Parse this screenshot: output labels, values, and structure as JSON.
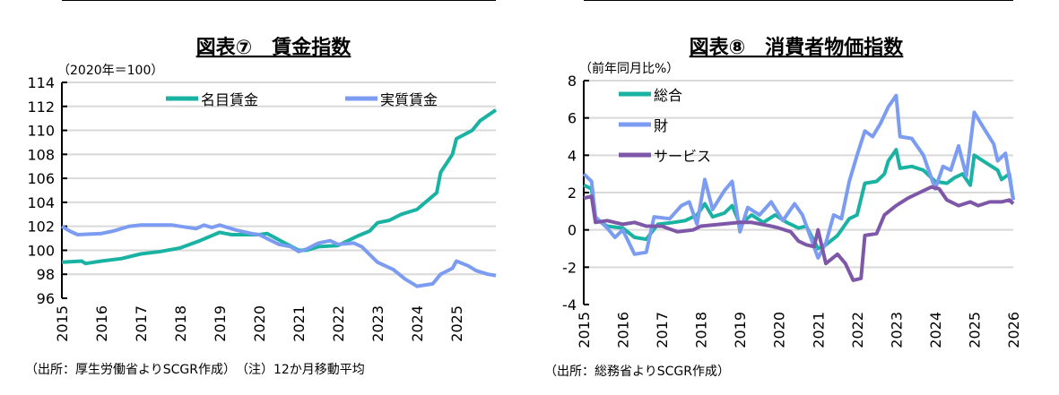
{
  "chart_data": [
    {
      "type": "line",
      "title": "図表⑦　賃金指数",
      "unit_label": "（2020年＝100）",
      "ylim": [
        96,
        114
      ],
      "yticks": [
        96,
        98,
        100,
        102,
        104,
        106,
        108,
        110,
        112,
        114
      ],
      "xticks": [
        "2015",
        "2016",
        "2017",
        "2018",
        "2019",
        "2020",
        "2021",
        "2022",
        "2023",
        "2024",
        "2025"
      ],
      "xlim": [
        2015,
        2026
      ],
      "grid": true,
      "legend": "top",
      "source": "（出所：厚生労働省よりSCGR作成）　（注）12か月移動平均",
      "series": [
        {
          "name": "名目賃金",
          "color": "#1ab3a3",
          "points": [
            [
              2015.0,
              99.0
            ],
            [
              2015.5,
              99.1
            ],
            [
              2015.6,
              98.9
            ],
            [
              2016.0,
              99.1
            ],
            [
              2016.5,
              99.3
            ],
            [
              2017.0,
              99.7
            ],
            [
              2017.5,
              99.9
            ],
            [
              2018.0,
              100.2
            ],
            [
              2018.5,
              100.8
            ],
            [
              2019.0,
              101.5
            ],
            [
              2019.3,
              101.3
            ],
            [
              2020.0,
              101.3
            ],
            [
              2020.2,
              101.4
            ],
            [
              2020.6,
              100.7
            ],
            [
              2021.0,
              100.0
            ],
            [
              2021.2,
              100.0
            ],
            [
              2021.5,
              100.3
            ],
            [
              2022.0,
              100.4
            ],
            [
              2022.5,
              101.2
            ],
            [
              2022.8,
              101.6
            ],
            [
              2023.0,
              102.3
            ],
            [
              2023.3,
              102.5
            ],
            [
              2023.6,
              103.0
            ],
            [
              2024.0,
              103.4
            ],
            [
              2024.5,
              104.8
            ],
            [
              2024.6,
              106.5
            ],
            [
              2024.9,
              108.0
            ],
            [
              2025.0,
              109.3
            ],
            [
              2025.4,
              110.0
            ],
            [
              2025.6,
              110.8
            ],
            [
              2026.0,
              111.7
            ]
          ]
        },
        {
          "name": "実質賃金",
          "color": "#7b9cf0",
          "points": [
            [
              2015.0,
              102.0
            ],
            [
              2015.2,
              101.6
            ],
            [
              2015.4,
              101.3
            ],
            [
              2016.0,
              101.4
            ],
            [
              2016.3,
              101.6
            ],
            [
              2016.7,
              102.0
            ],
            [
              2017.0,
              102.1
            ],
            [
              2017.8,
              102.1
            ],
            [
              2018.0,
              102.0
            ],
            [
              2018.4,
              101.8
            ],
            [
              2018.6,
              102.1
            ],
            [
              2018.8,
              101.9
            ],
            [
              2019.0,
              102.1
            ],
            [
              2019.4,
              101.7
            ],
            [
              2019.8,
              101.4
            ],
            [
              2020.0,
              101.3
            ],
            [
              2020.5,
              100.5
            ],
            [
              2020.8,
              100.3
            ],
            [
              2021.0,
              99.9
            ],
            [
              2021.2,
              100.1
            ],
            [
              2021.5,
              100.6
            ],
            [
              2021.8,
              100.8
            ],
            [
              2022.0,
              100.5
            ],
            [
              2022.4,
              100.6
            ],
            [
              2022.6,
              100.3
            ],
            [
              2023.0,
              99.0
            ],
            [
              2023.4,
              98.4
            ],
            [
              2023.7,
              97.6
            ],
            [
              2024.0,
              97.0
            ],
            [
              2024.4,
              97.2
            ],
            [
              2024.6,
              98.0
            ],
            [
              2024.9,
              98.5
            ],
            [
              2025.0,
              99.1
            ],
            [
              2025.3,
              98.7
            ],
            [
              2025.5,
              98.3
            ],
            [
              2025.8,
              98.0
            ],
            [
              2026.0,
              97.9
            ]
          ]
        }
      ]
    },
    {
      "type": "line",
      "title": "図表⑧　消費者物価指数",
      "unit_label": "（前年同月比%）",
      "ylim": [
        -4,
        8
      ],
      "yticks": [
        -4,
        -2,
        0,
        2,
        4,
        6,
        8
      ],
      "xticks": [
        "2015",
        "2016",
        "2017",
        "2018",
        "2019",
        "2020",
        "2021",
        "2022",
        "2023",
        "2024",
        "2025",
        "2026"
      ],
      "xlim": [
        2015,
        2026
      ],
      "grid": true,
      "legend": "top-left",
      "source": "（出所：総務省よりSCGR作成）",
      "series": [
        {
          "name": "総合",
          "color": "#1ab3a3",
          "points": [
            [
              2015.0,
              2.4
            ],
            [
              2015.2,
              2.2
            ],
            [
              2015.3,
              0.6
            ],
            [
              2015.6,
              0.2
            ],
            [
              2016.0,
              0.1
            ],
            [
              2016.3,
              -0.4
            ],
            [
              2016.6,
              -0.5
            ],
            [
              2016.9,
              0.3
            ],
            [
              2017.3,
              0.4
            ],
            [
              2017.6,
              0.5
            ],
            [
              2017.9,
              0.8
            ],
            [
              2018.1,
              1.4
            ],
            [
              2018.3,
              0.7
            ],
            [
              2018.6,
              0.9
            ],
            [
              2018.8,
              1.3
            ],
            [
              2019.0,
              0.3
            ],
            [
              2019.3,
              0.8
            ],
            [
              2019.6,
              0.4
            ],
            [
              2019.9,
              0.8
            ],
            [
              2020.2,
              0.4
            ],
            [
              2020.5,
              0.1
            ],
            [
              2020.7,
              0.2
            ],
            [
              2021.0,
              -1.0
            ],
            [
              2021.2,
              -0.8
            ],
            [
              2021.5,
              -0.3
            ],
            [
              2021.8,
              0.6
            ],
            [
              2022.0,
              0.8
            ],
            [
              2022.2,
              2.5
            ],
            [
              2022.5,
              2.6
            ],
            [
              2022.7,
              3.0
            ],
            [
              2022.8,
              3.7
            ],
            [
              2023.0,
              4.3
            ],
            [
              2023.1,
              3.3
            ],
            [
              2023.4,
              3.4
            ],
            [
              2023.7,
              3.2
            ],
            [
              2024.0,
              2.6
            ],
            [
              2024.3,
              2.5
            ],
            [
              2024.5,
              2.8
            ],
            [
              2024.7,
              3.0
            ],
            [
              2024.9,
              2.4
            ],
            [
              2025.0,
              4.0
            ],
            [
              2025.3,
              3.6
            ],
            [
              2025.6,
              3.2
            ],
            [
              2025.7,
              2.7
            ],
            [
              2025.9,
              3.0
            ],
            [
              2026.0,
              1.6
            ]
          ]
        },
        {
          "name": "財",
          "color": "#7b9cf0",
          "points": [
            [
              2015.0,
              3.0
            ],
            [
              2015.2,
              2.6
            ],
            [
              2015.3,
              0.7
            ],
            [
              2015.6,
              0.1
            ],
            [
              2015.8,
              -0.4
            ],
            [
              2016.0,
              0.0
            ],
            [
              2016.3,
              -1.3
            ],
            [
              2016.6,
              -1.2
            ],
            [
              2016.8,
              0.7
            ],
            [
              2017.2,
              0.6
            ],
            [
              2017.5,
              1.3
            ],
            [
              2017.7,
              1.5
            ],
            [
              2017.9,
              0.3
            ],
            [
              2018.1,
              2.7
            ],
            [
              2018.3,
              1.1
            ],
            [
              2018.6,
              2.1
            ],
            [
              2018.8,
              2.6
            ],
            [
              2019.0,
              -0.1
            ],
            [
              2019.2,
              1.2
            ],
            [
              2019.5,
              0.8
            ],
            [
              2019.8,
              1.5
            ],
            [
              2020.1,
              0.5
            ],
            [
              2020.4,
              1.4
            ],
            [
              2020.6,
              0.8
            ],
            [
              2021.0,
              -1.5
            ],
            [
              2021.2,
              -0.7
            ],
            [
              2021.4,
              0.8
            ],
            [
              2021.6,
              0.6
            ],
            [
              2021.8,
              2.6
            ],
            [
              2022.0,
              4.0
            ],
            [
              2022.2,
              5.3
            ],
            [
              2022.4,
              5.0
            ],
            [
              2022.6,
              5.7
            ],
            [
              2022.8,
              6.6
            ],
            [
              2023.0,
              7.2
            ],
            [
              2023.1,
              5.0
            ],
            [
              2023.4,
              4.9
            ],
            [
              2023.7,
              4.0
            ],
            [
              2024.0,
              2.2
            ],
            [
              2024.2,
              3.4
            ],
            [
              2024.4,
              3.2
            ],
            [
              2024.6,
              4.5
            ],
            [
              2024.8,
              2.9
            ],
            [
              2025.0,
              6.3
            ],
            [
              2025.2,
              5.6
            ],
            [
              2025.5,
              4.6
            ],
            [
              2025.6,
              3.7
            ],
            [
              2025.8,
              4.1
            ],
            [
              2026.0,
              1.6
            ]
          ]
        },
        {
          "name": "サービス",
          "color": "#7e57a8",
          "points": [
            [
              2015.0,
              1.7
            ],
            [
              2015.2,
              1.8
            ],
            [
              2015.3,
              0.4
            ],
            [
              2015.6,
              0.5
            ],
            [
              2016.0,
              0.3
            ],
            [
              2016.3,
              0.4
            ],
            [
              2016.6,
              0.2
            ],
            [
              2017.0,
              0.2
            ],
            [
              2017.4,
              -0.1
            ],
            [
              2017.8,
              0.0
            ],
            [
              2018.0,
              0.2
            ],
            [
              2018.5,
              0.3
            ],
            [
              2019.0,
              0.4
            ],
            [
              2019.3,
              0.4
            ],
            [
              2019.8,
              0.2
            ],
            [
              2020.0,
              0.1
            ],
            [
              2020.3,
              -0.1
            ],
            [
              2020.5,
              -0.6
            ],
            [
              2020.7,
              -0.8
            ],
            [
              2020.9,
              -0.9
            ],
            [
              2021.0,
              0.0
            ],
            [
              2021.2,
              -1.8
            ],
            [
              2021.5,
              -1.3
            ],
            [
              2021.7,
              -1.8
            ],
            [
              2021.9,
              -2.7
            ],
            [
              2022.1,
              -2.6
            ],
            [
              2022.2,
              -0.3
            ],
            [
              2022.5,
              -0.2
            ],
            [
              2022.7,
              0.8
            ],
            [
              2023.0,
              1.3
            ],
            [
              2023.3,
              1.7
            ],
            [
              2023.6,
              2.0
            ],
            [
              2023.9,
              2.3
            ],
            [
              2024.1,
              2.2
            ],
            [
              2024.3,
              1.6
            ],
            [
              2024.6,
              1.3
            ],
            [
              2024.9,
              1.5
            ],
            [
              2025.1,
              1.3
            ],
            [
              2025.4,
              1.5
            ],
            [
              2025.7,
              1.5
            ],
            [
              2025.9,
              1.6
            ],
            [
              2026.0,
              1.4
            ]
          ]
        }
      ]
    }
  ]
}
